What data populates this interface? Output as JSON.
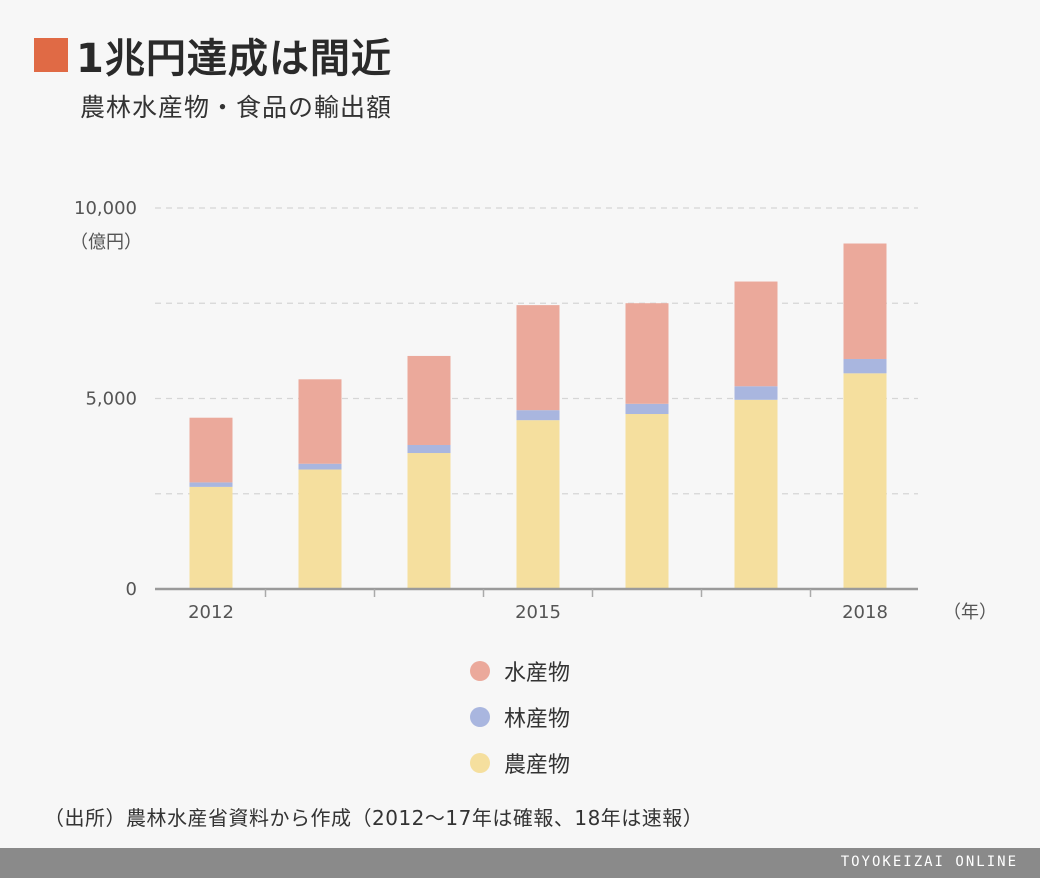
{
  "title": "1兆円達成は間近",
  "subtitle": "農林水産物・食品の輸出額",
  "colors": {
    "accent": "#e06a45",
    "fishery": "#eba99b",
    "forestry": "#a9b6df",
    "agri": "#f5df9e"
  },
  "chart_data": {
    "type": "bar",
    "stacked": true,
    "categories": [
      "2012",
      "2013",
      "2014",
      "2015",
      "2016",
      "2017",
      "2018"
    ],
    "tick_labels": {
      "2012": "2012",
      "2015": "2015",
      "2018": "2018"
    },
    "series": [
      {
        "name": "農産物",
        "values": [
          2680,
          3136,
          3569,
          4431,
          4593,
          4966,
          5661
        ]
      },
      {
        "name": "林産物",
        "values": [
          118,
          152,
          211,
          263,
          268,
          355,
          376
        ]
      },
      {
        "name": "水産物",
        "values": [
          1698,
          2216,
          2337,
          2757,
          2640,
          2749,
          3031
        ]
      }
    ],
    "ylim": [
      0,
      10000
    ],
    "yticks": [
      {
        "value": 0,
        "label": "0"
      },
      {
        "value": 5000,
        "label": "5,000"
      },
      {
        "value": 10000,
        "label": "10,000"
      }
    ],
    "ylabel": "（億円）",
    "xlabel": "（年）",
    "legend": [
      "水産物",
      "林産物",
      "農産物"
    ],
    "grid": true
  },
  "source": "（出所）農林水産省資料から作成（2012～17年は確報、18年は速報）",
  "brand": "TOYOKEIZAI ONLINE"
}
